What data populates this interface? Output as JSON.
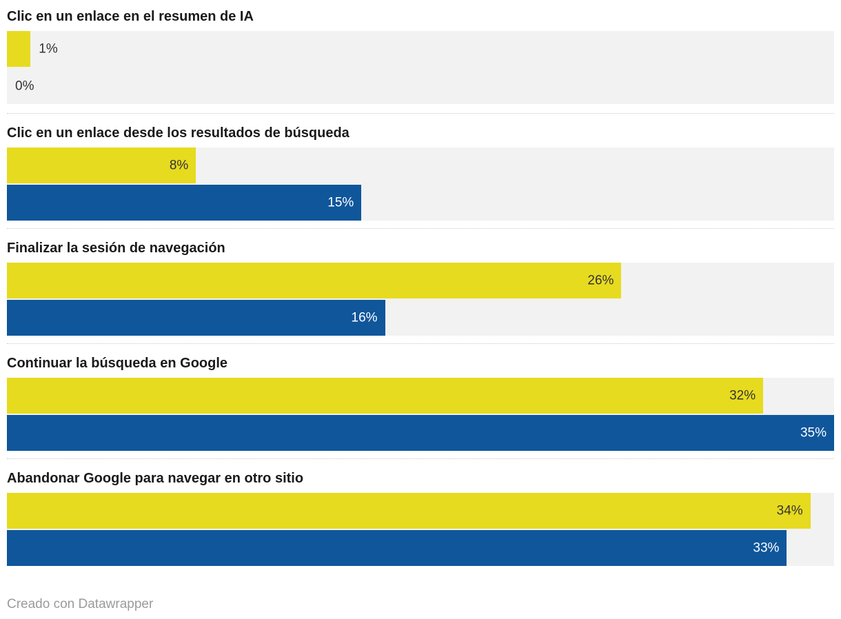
{
  "chart_data": {
    "type": "bar",
    "orientation": "horizontal",
    "value_format": "percent",
    "xlim": [
      0,
      35
    ],
    "grid": "off",
    "legend": "none",
    "categories": [
      "Clic en un enlace en el resumen de IA",
      "Clic en un enlace desde los resultados de búsqueda",
      "Finalizar la sesión de navegación",
      "Continuar la búsqueda en Google",
      "Abandonar Google para navegar en otro sitio"
    ],
    "series": [
      {
        "name": "yellow",
        "color": "#e7db1f",
        "values": [
          1,
          8,
          26,
          32,
          34
        ]
      },
      {
        "name": "blue",
        "color": "#0f569b",
        "values": [
          0,
          15,
          16,
          35,
          33
        ]
      }
    ]
  },
  "groups": [
    {
      "title": "Clic en un enlace en el resumen de IA",
      "bars": [
        {
          "value": 1,
          "label": "1%",
          "color": "yellow",
          "label_position": "outside"
        },
        {
          "value": 0,
          "label": "0%",
          "color": "blue",
          "label_position": "outside"
        }
      ]
    },
    {
      "title": "Clic en un enlace desde los resultados de búsqueda",
      "bars": [
        {
          "value": 8,
          "label": "8%",
          "color": "yellow",
          "label_position": "inside"
        },
        {
          "value": 15,
          "label": "15%",
          "color": "blue",
          "label_position": "inside"
        }
      ]
    },
    {
      "title": "Finalizar la sesión de navegación",
      "bars": [
        {
          "value": 26,
          "label": "26%",
          "color": "yellow",
          "label_position": "inside"
        },
        {
          "value": 16,
          "label": "16%",
          "color": "blue",
          "label_position": "inside"
        }
      ]
    },
    {
      "title": "Continuar la búsqueda en Google",
      "bars": [
        {
          "value": 32,
          "label": "32%",
          "color": "yellow",
          "label_position": "inside"
        },
        {
          "value": 35,
          "label": "35%",
          "color": "blue",
          "label_position": "inside"
        }
      ]
    },
    {
      "title": "Abandonar Google para navegar en otro sitio",
      "bars": [
        {
          "value": 34,
          "label": "34%",
          "color": "yellow",
          "label_position": "inside"
        },
        {
          "value": 33,
          "label": "33%",
          "color": "blue",
          "label_position": "inside"
        }
      ]
    }
  ],
  "footer": {
    "credit": "Creado con Datawrapper"
  },
  "colors": {
    "yellow": "#e7db1f",
    "blue": "#0f569b",
    "track": "#f2f2f2",
    "title": "#1a1a1a",
    "label_dark": "#333333",
    "label_light": "#ffffff",
    "separator": "#c9c9c9",
    "credit": "#9b9b9b",
    "page_bg": "#ffffff"
  }
}
